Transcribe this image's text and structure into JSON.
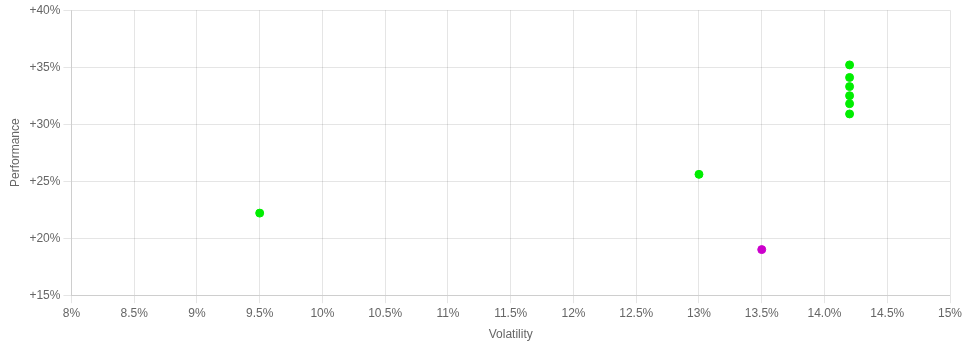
{
  "chart_data": {
    "type": "scatter",
    "xlabel": "Volatility",
    "ylabel": "Performance",
    "xlim": [
      0.08,
      0.15
    ],
    "ylim": [
      0.15,
      0.4
    ],
    "xticks": [
      {
        "value": 0.08,
        "label": "8%"
      },
      {
        "value": 0.085,
        "label": "8.5%"
      },
      {
        "value": 0.09,
        "label": "9%"
      },
      {
        "value": 0.095,
        "label": "9.5%"
      },
      {
        "value": 0.1,
        "label": "10%"
      },
      {
        "value": 0.105,
        "label": "10.5%"
      },
      {
        "value": 0.11,
        "label": "11%"
      },
      {
        "value": 0.115,
        "label": "11.5%"
      },
      {
        "value": 0.12,
        "label": "12%"
      },
      {
        "value": 0.125,
        "label": "12.5%"
      },
      {
        "value": 0.13,
        "label": "13%"
      },
      {
        "value": 0.135,
        "label": "13.5%"
      },
      {
        "value": 0.14,
        "label": "14.0%"
      },
      {
        "value": 0.145,
        "label": "14.5%"
      },
      {
        "value": 0.15,
        "label": "15%"
      }
    ],
    "yticks": [
      {
        "value": 0.15,
        "label": "+15%"
      },
      {
        "value": 0.2,
        "label": "+20%"
      },
      {
        "value": 0.25,
        "label": "+25%"
      },
      {
        "value": 0.3,
        "label": "+30%"
      },
      {
        "value": 0.35,
        "label": "+35%"
      },
      {
        "value": 0.4,
        "label": "+40%"
      }
    ],
    "grid": true,
    "series": [
      {
        "color": "#00ee00",
        "x": [
          0.095,
          0.13,
          0.142,
          0.142,
          0.142,
          0.142,
          0.142,
          0.142
        ],
        "values": [
          0.222,
          0.256,
          0.352,
          0.341,
          0.333,
          0.325,
          0.318,
          0.309
        ]
      },
      {
        "color": "#cc00cc",
        "x": [
          0.135
        ],
        "values": [
          0.19
        ]
      }
    ]
  }
}
